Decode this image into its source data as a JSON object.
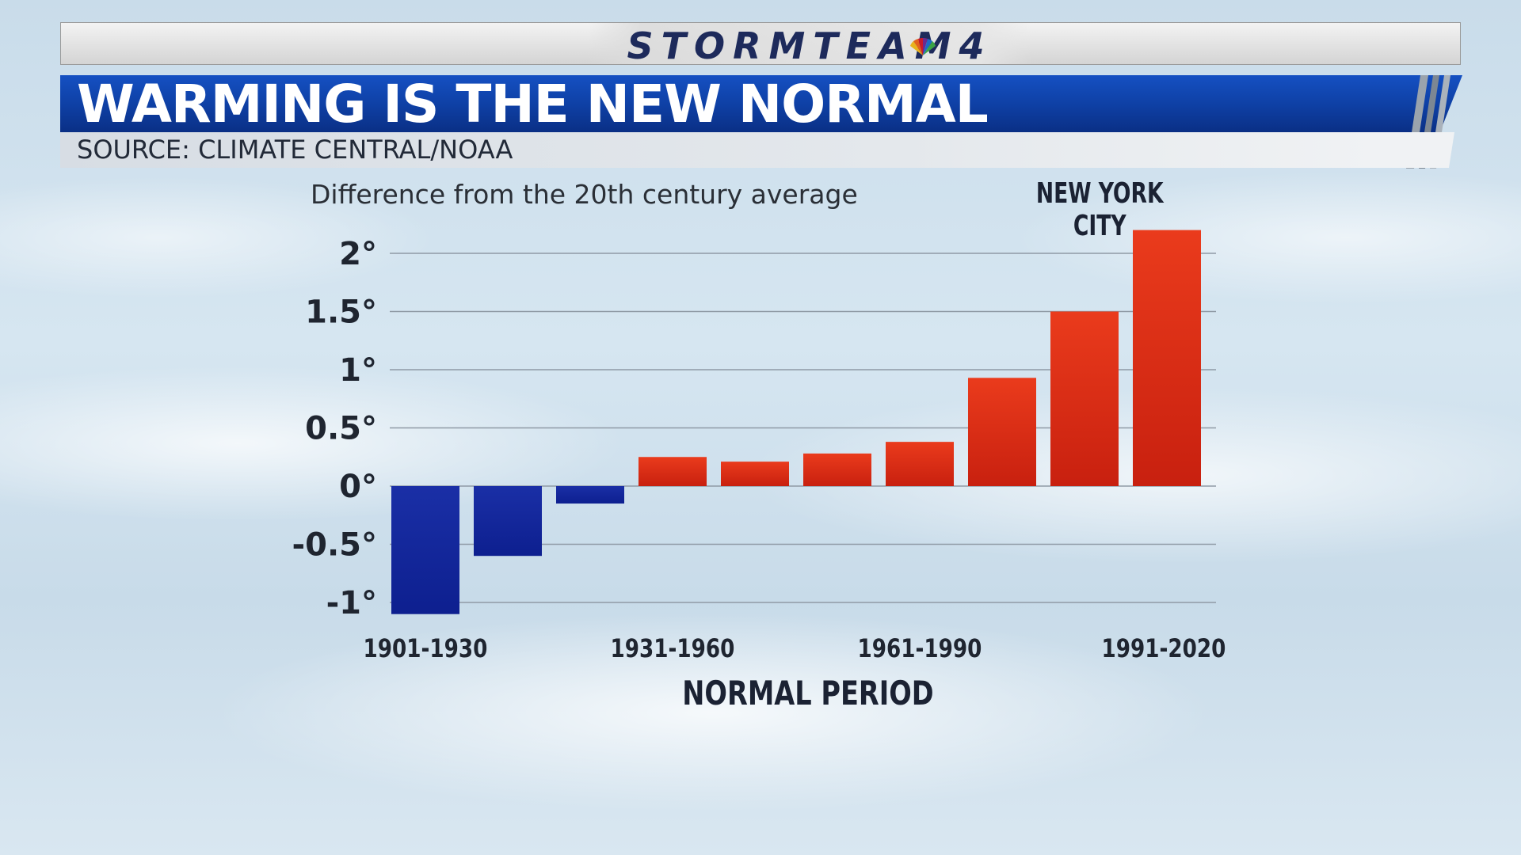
{
  "header": {
    "logo_text": "STORMTEAM4",
    "title": "WARMING IS THE NEW NORMAL",
    "source": "SOURCE: CLIMATE CENTRAL/NOAA"
  },
  "colors": {
    "positive_bar": "#c8200f",
    "negative_bar": "#0d1f8f",
    "title_banner": "#1550c2"
  },
  "chart_data": {
    "type": "bar",
    "subtitle": "Difference from the 20th century average",
    "location_label": "NEW YORK CITY",
    "xlabel": "NORMAL PERIOD",
    "ylabel": "",
    "ylim": [
      -1,
      2
    ],
    "yticks": [
      2,
      1.5,
      1,
      0.5,
      0,
      -0.5,
      -1
    ],
    "ytick_labels": [
      "2°",
      "1.5°",
      "1°",
      "0.5°",
      "0°",
      "-0.5°",
      "-1°"
    ],
    "x_tick_labels": [
      {
        "index": 0,
        "label": "1901-1930"
      },
      {
        "index": 3,
        "label": "1931-1960"
      },
      {
        "index": 6,
        "label": "1961-1990"
      },
      {
        "index": 9,
        "label": "1991-2020"
      }
    ],
    "values": [
      -1.1,
      -0.6,
      -0.15,
      0.25,
      0.21,
      0.28,
      0.38,
      0.93,
      1.5,
      2.2
    ],
    "grid": true,
    "legend": false
  }
}
